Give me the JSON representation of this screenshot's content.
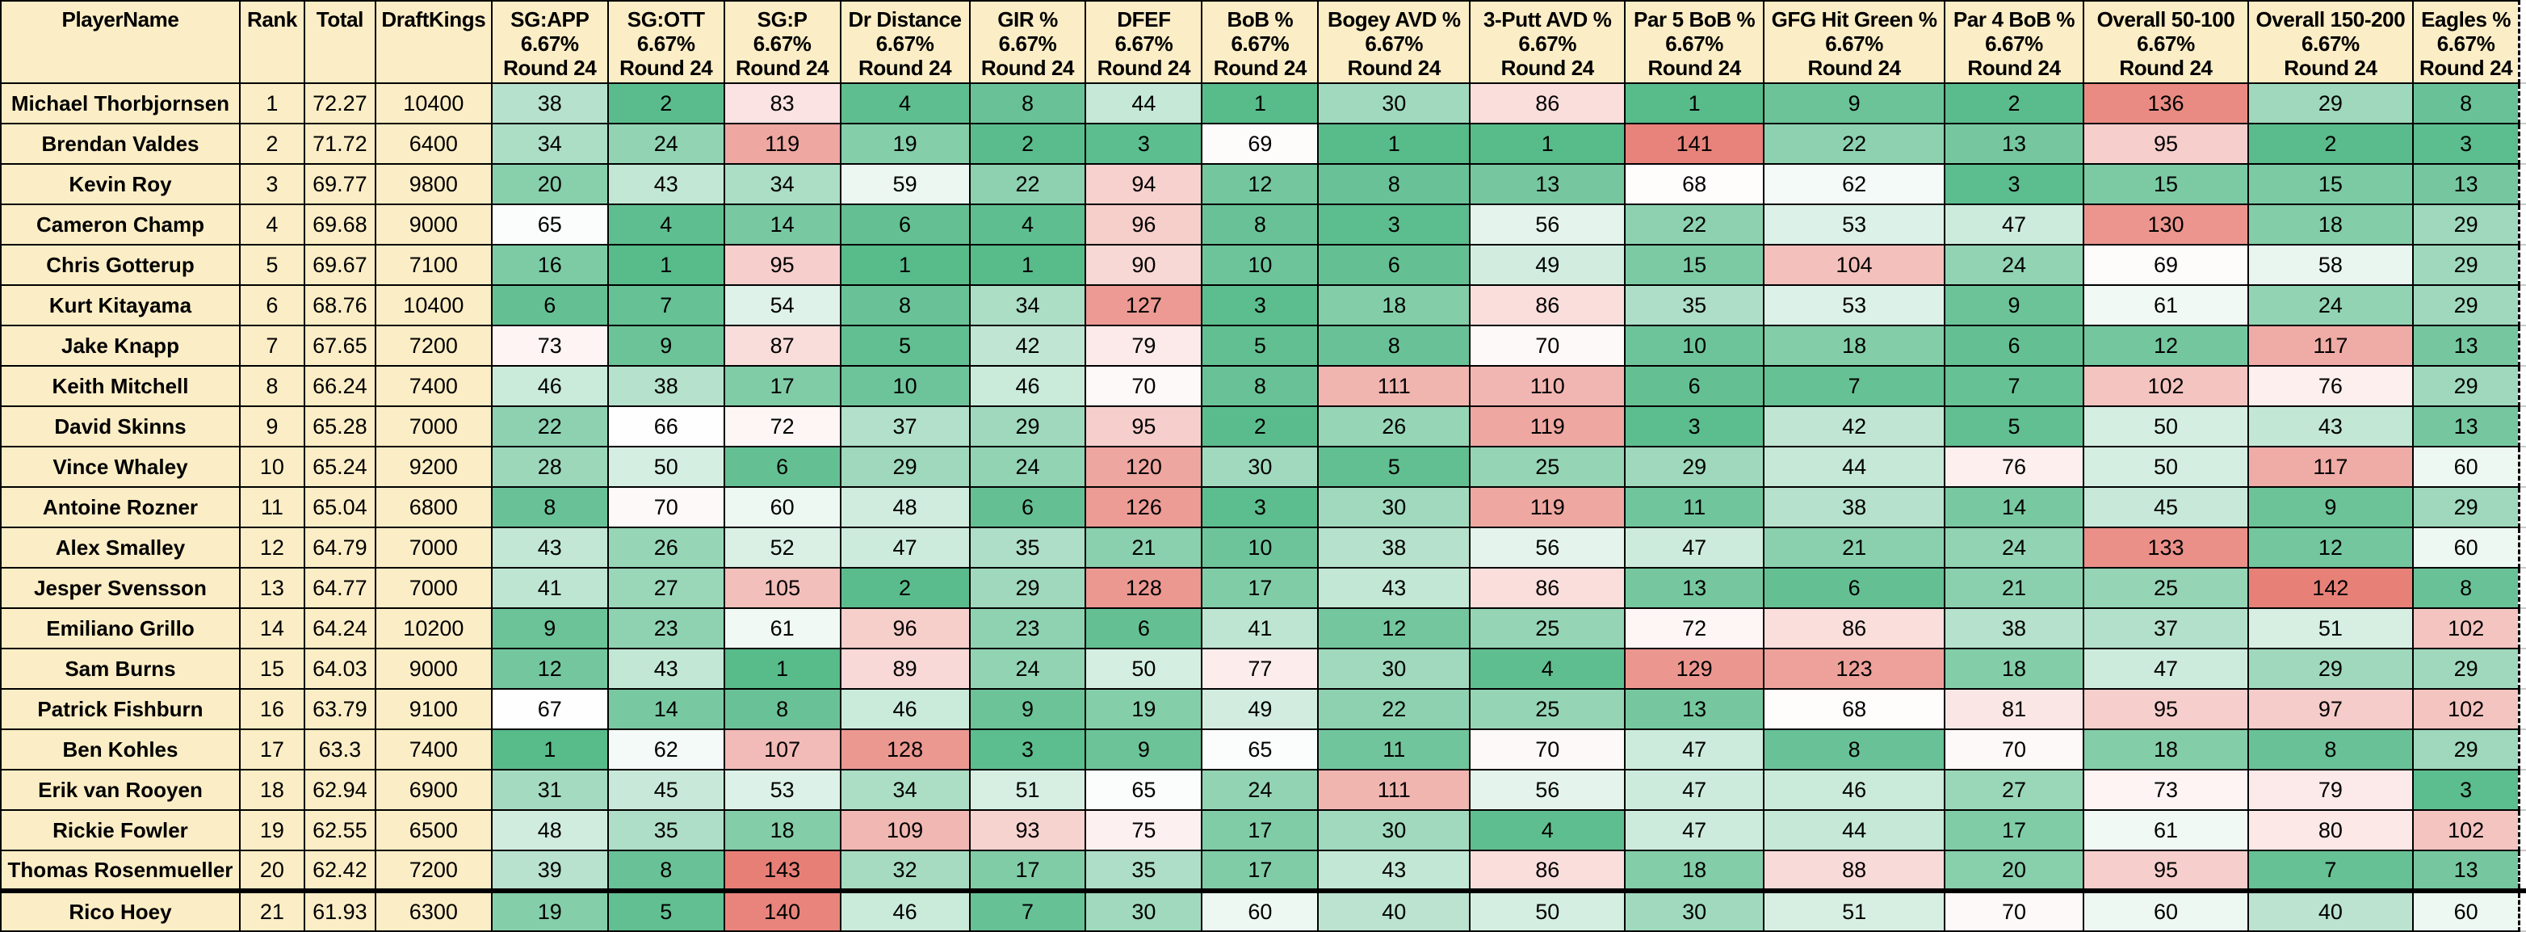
{
  "table": {
    "columns": [
      {
        "id": "player",
        "label": "PlayerName",
        "kind": "text"
      },
      {
        "id": "rank",
        "label": "Rank",
        "kind": "num"
      },
      {
        "id": "total",
        "label": "Total",
        "kind": "num"
      },
      {
        "id": "draftkings",
        "label": "DraftKings",
        "kind": "num"
      },
      {
        "id": "sg_app",
        "label": "SG:APP",
        "weight": "6.67%",
        "round": "Round 24",
        "kind": "stat"
      },
      {
        "id": "sg_ott",
        "label": "SG:OTT",
        "weight": "6.67%",
        "round": "Round 24",
        "kind": "stat"
      },
      {
        "id": "sg_p",
        "label": "SG:P",
        "weight": "6.67%",
        "round": "Round 24",
        "kind": "stat"
      },
      {
        "id": "dr_distance",
        "label": "Dr Distance",
        "weight": "6.67%",
        "round": "Round 24",
        "kind": "stat"
      },
      {
        "id": "gir_pct",
        "label": "GIR %",
        "weight": "6.67%",
        "round": "Round 24",
        "kind": "stat"
      },
      {
        "id": "dfef",
        "label": "DFEF",
        "weight": "6.67%",
        "round": "Round 24",
        "kind": "stat"
      },
      {
        "id": "bob_pct",
        "label": "BoB %",
        "weight": "6.67%",
        "round": "Round 24",
        "kind": "stat"
      },
      {
        "id": "bogey_avd",
        "label": "Bogey AVD %",
        "weight": "6.67%",
        "round": "Round 24",
        "kind": "stat"
      },
      {
        "id": "putt3_avd",
        "label": "3-Putt AVD %",
        "weight": "6.67%",
        "round": "Round 24",
        "kind": "stat"
      },
      {
        "id": "par5_bob",
        "label": "Par 5 BoB %",
        "weight": "6.67%",
        "round": "Round 24",
        "kind": "stat"
      },
      {
        "id": "gfg_hit_green",
        "label": "GFG Hit Green %",
        "weight": "6.67%",
        "round": "Round 24",
        "kind": "stat"
      },
      {
        "id": "par4_bob",
        "label": "Par 4 BoB %",
        "weight": "6.67%",
        "round": "Round 24",
        "kind": "stat"
      },
      {
        "id": "overall_50_100",
        "label": "Overall 50-100",
        "weight": "6.67%",
        "round": "Round 24",
        "kind": "stat"
      },
      {
        "id": "overall_150_200",
        "label": "Overall 150-200",
        "weight": "6.67%",
        "round": "Round 24",
        "kind": "stat"
      },
      {
        "id": "eagles_pct",
        "label": "Eagles %",
        "weight": "6.67%",
        "round": "Round 24",
        "kind": "stat"
      }
    ],
    "rows": [
      {
        "name": "Michael Thorbjornsen",
        "rank": 1,
        "total": "72.27",
        "draftkings": "10400",
        "stats": [
          38,
          2,
          83,
          4,
          8,
          44,
          1,
          30,
          86,
          1,
          9,
          2,
          136,
          29,
          8
        ]
      },
      {
        "name": "Brendan Valdes",
        "rank": 2,
        "total": "71.72",
        "draftkings": "6400",
        "stats": [
          34,
          24,
          119,
          19,
          2,
          3,
          69,
          1,
          1,
          141,
          22,
          13,
          95,
          2,
          3
        ]
      },
      {
        "name": "Kevin Roy",
        "rank": 3,
        "total": "69.77",
        "draftkings": "9800",
        "stats": [
          20,
          43,
          34,
          59,
          22,
          94,
          12,
          8,
          13,
          68,
          62,
          3,
          15,
          15,
          13
        ]
      },
      {
        "name": "Cameron Champ",
        "rank": 4,
        "total": "69.68",
        "draftkings": "9000",
        "stats": [
          65,
          4,
          14,
          6,
          4,
          96,
          8,
          3,
          56,
          22,
          53,
          47,
          130,
          18,
          29
        ]
      },
      {
        "name": "Chris Gotterup",
        "rank": 5,
        "total": "69.67",
        "draftkings": "7100",
        "stats": [
          16,
          1,
          95,
          1,
          1,
          90,
          10,
          6,
          49,
          15,
          104,
          24,
          69,
          58,
          29
        ]
      },
      {
        "name": "Kurt Kitayama",
        "rank": 6,
        "total": "68.76",
        "draftkings": "10400",
        "stats": [
          6,
          7,
          54,
          8,
          34,
          127,
          3,
          18,
          86,
          35,
          53,
          9,
          61,
          24,
          29
        ]
      },
      {
        "name": "Jake Knapp",
        "rank": 7,
        "total": "67.65",
        "draftkings": "7200",
        "stats": [
          73,
          9,
          87,
          5,
          42,
          79,
          5,
          8,
          70,
          10,
          18,
          6,
          12,
          117,
          13
        ]
      },
      {
        "name": "Keith Mitchell",
        "rank": 8,
        "total": "66.24",
        "draftkings": "7400",
        "stats": [
          46,
          38,
          17,
          10,
          46,
          70,
          8,
          111,
          110,
          6,
          7,
          7,
          102,
          76,
          29
        ]
      },
      {
        "name": "David Skinns",
        "rank": 9,
        "total": "65.28",
        "draftkings": "7000",
        "stats": [
          22,
          66,
          72,
          37,
          29,
          95,
          2,
          26,
          119,
          3,
          42,
          5,
          50,
          43,
          13
        ]
      },
      {
        "name": "Vince Whaley",
        "rank": 10,
        "total": "65.24",
        "draftkings": "9200",
        "stats": [
          28,
          50,
          6,
          29,
          24,
          120,
          30,
          5,
          25,
          29,
          44,
          76,
          50,
          117,
          60
        ]
      },
      {
        "name": "Antoine Rozner",
        "rank": 11,
        "total": "65.04",
        "draftkings": "6800",
        "stats": [
          8,
          70,
          60,
          48,
          6,
          126,
          3,
          30,
          119,
          11,
          38,
          14,
          45,
          9,
          29
        ]
      },
      {
        "name": "Alex Smalley",
        "rank": 12,
        "total": "64.79",
        "draftkings": "7000",
        "stats": [
          43,
          26,
          52,
          47,
          35,
          21,
          10,
          38,
          56,
          47,
          21,
          24,
          133,
          12,
          60
        ]
      },
      {
        "name": "Jesper Svensson",
        "rank": 13,
        "total": "64.77",
        "draftkings": "7000",
        "stats": [
          41,
          27,
          105,
          2,
          29,
          128,
          17,
          43,
          86,
          13,
          6,
          21,
          25,
          142,
          8
        ]
      },
      {
        "name": "Emiliano Grillo",
        "rank": 14,
        "total": "64.24",
        "draftkings": "10200",
        "stats": [
          9,
          23,
          61,
          96,
          23,
          6,
          41,
          12,
          25,
          72,
          86,
          38,
          37,
          51,
          102
        ]
      },
      {
        "name": "Sam Burns",
        "rank": 15,
        "total": "64.03",
        "draftkings": "9000",
        "stats": [
          12,
          43,
          1,
          89,
          24,
          50,
          77,
          30,
          4,
          129,
          123,
          18,
          47,
          29,
          29
        ]
      },
      {
        "name": "Patrick Fishburn",
        "rank": 16,
        "total": "63.79",
        "draftkings": "9100",
        "stats": [
          67,
          14,
          8,
          46,
          9,
          19,
          49,
          22,
          25,
          13,
          68,
          81,
          95,
          97,
          102
        ]
      },
      {
        "name": "Ben Kohles",
        "rank": 17,
        "total": "63.3",
        "draftkings": "7400",
        "stats": [
          1,
          62,
          107,
          128,
          3,
          9,
          65,
          11,
          70,
          47,
          8,
          70,
          18,
          8,
          29
        ]
      },
      {
        "name": "Erik van Rooyen",
        "rank": 18,
        "total": "62.94",
        "draftkings": "6900",
        "stats": [
          31,
          45,
          53,
          34,
          51,
          65,
          24,
          111,
          56,
          47,
          46,
          27,
          73,
          79,
          3
        ]
      },
      {
        "name": "Rickie Fowler",
        "rank": 19,
        "total": "62.55",
        "draftkings": "6500",
        "stats": [
          48,
          35,
          18,
          109,
          93,
          75,
          17,
          30,
          4,
          47,
          44,
          17,
          61,
          80,
          102
        ]
      },
      {
        "name": "Thomas Rosenmueller",
        "rank": 20,
        "total": "62.42",
        "draftkings": "7200",
        "stats": [
          39,
          8,
          143,
          32,
          17,
          35,
          17,
          43,
          86,
          18,
          88,
          20,
          95,
          7,
          13
        ]
      },
      {
        "name": "Rico Hoey",
        "rank": 21,
        "total": "61.93",
        "draftkings": "6300",
        "stats": [
          19,
          5,
          140,
          46,
          7,
          30,
          60,
          40,
          50,
          30,
          51,
          70,
          60,
          40,
          60
        ],
        "clipped": true
      }
    ]
  },
  "colors": {
    "header_bg": "#FBEDC5",
    "grid_line": "#000000",
    "margin_grid_line": "#C9C9C9",
    "scale_green": "#57BB8A",
    "scale_white": "#FFFFFF",
    "scale_red": "#E67C73",
    "scale_min": 1,
    "scale_mid": 66.5,
    "scale_max": 145
  }
}
